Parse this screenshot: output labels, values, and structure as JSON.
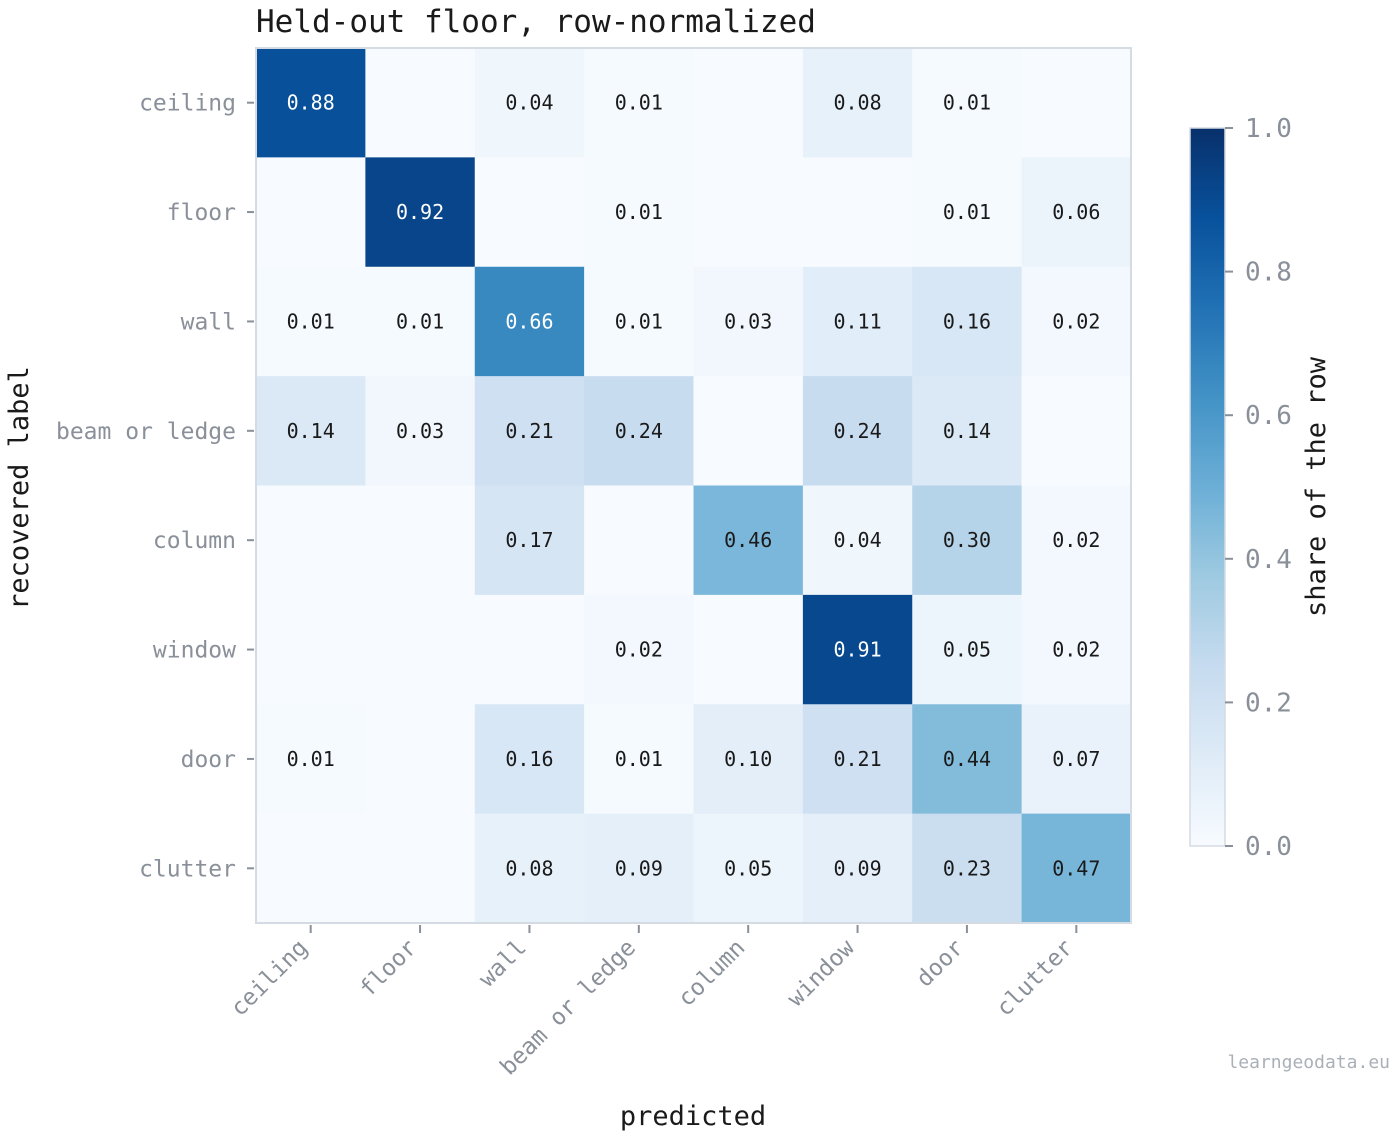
{
  "chart_data": {
    "type": "heatmap",
    "title": "Held-out floor, row-normalized",
    "xlabel": "predicted",
    "ylabel": "recovered label",
    "row_labels": [
      "ceiling",
      "floor",
      "wall",
      "beam or ledge",
      "column",
      "window",
      "door",
      "clutter"
    ],
    "col_labels": [
      "ceiling",
      "floor",
      "wall",
      "beam or ledge",
      "column",
      "window",
      "door",
      "clutter"
    ],
    "values": [
      [
        0.88,
        0.0,
        0.04,
        0.01,
        0.0,
        0.08,
        0.01,
        0.0
      ],
      [
        0.0,
        0.92,
        0.0,
        0.01,
        0.0,
        0.0,
        0.01,
        0.06
      ],
      [
        0.01,
        0.01,
        0.66,
        0.01,
        0.03,
        0.11,
        0.16,
        0.02
      ],
      [
        0.14,
        0.03,
        0.21,
        0.24,
        0.0,
        0.24,
        0.14,
        0.0
      ],
      [
        0.0,
        0.0,
        0.17,
        0.0,
        0.46,
        0.04,
        0.3,
        0.02
      ],
      [
        0.0,
        0.0,
        0.0,
        0.02,
        0.0,
        0.91,
        0.05,
        0.02
      ],
      [
        0.01,
        0.0,
        0.16,
        0.01,
        0.1,
        0.21,
        0.44,
        0.07
      ],
      [
        0.0,
        0.0,
        0.08,
        0.09,
        0.05,
        0.09,
        0.23,
        0.47
      ]
    ],
    "label_threshold": 0.005,
    "colorbar": {
      "label": "share of the row",
      "range": [
        0.0,
        1.0
      ],
      "ticks": [
        "0.0",
        "0.2",
        "0.4",
        "0.6",
        "0.8",
        "1.0"
      ],
      "colormap": "Blues"
    }
  },
  "watermark": "learngeodata.eu"
}
